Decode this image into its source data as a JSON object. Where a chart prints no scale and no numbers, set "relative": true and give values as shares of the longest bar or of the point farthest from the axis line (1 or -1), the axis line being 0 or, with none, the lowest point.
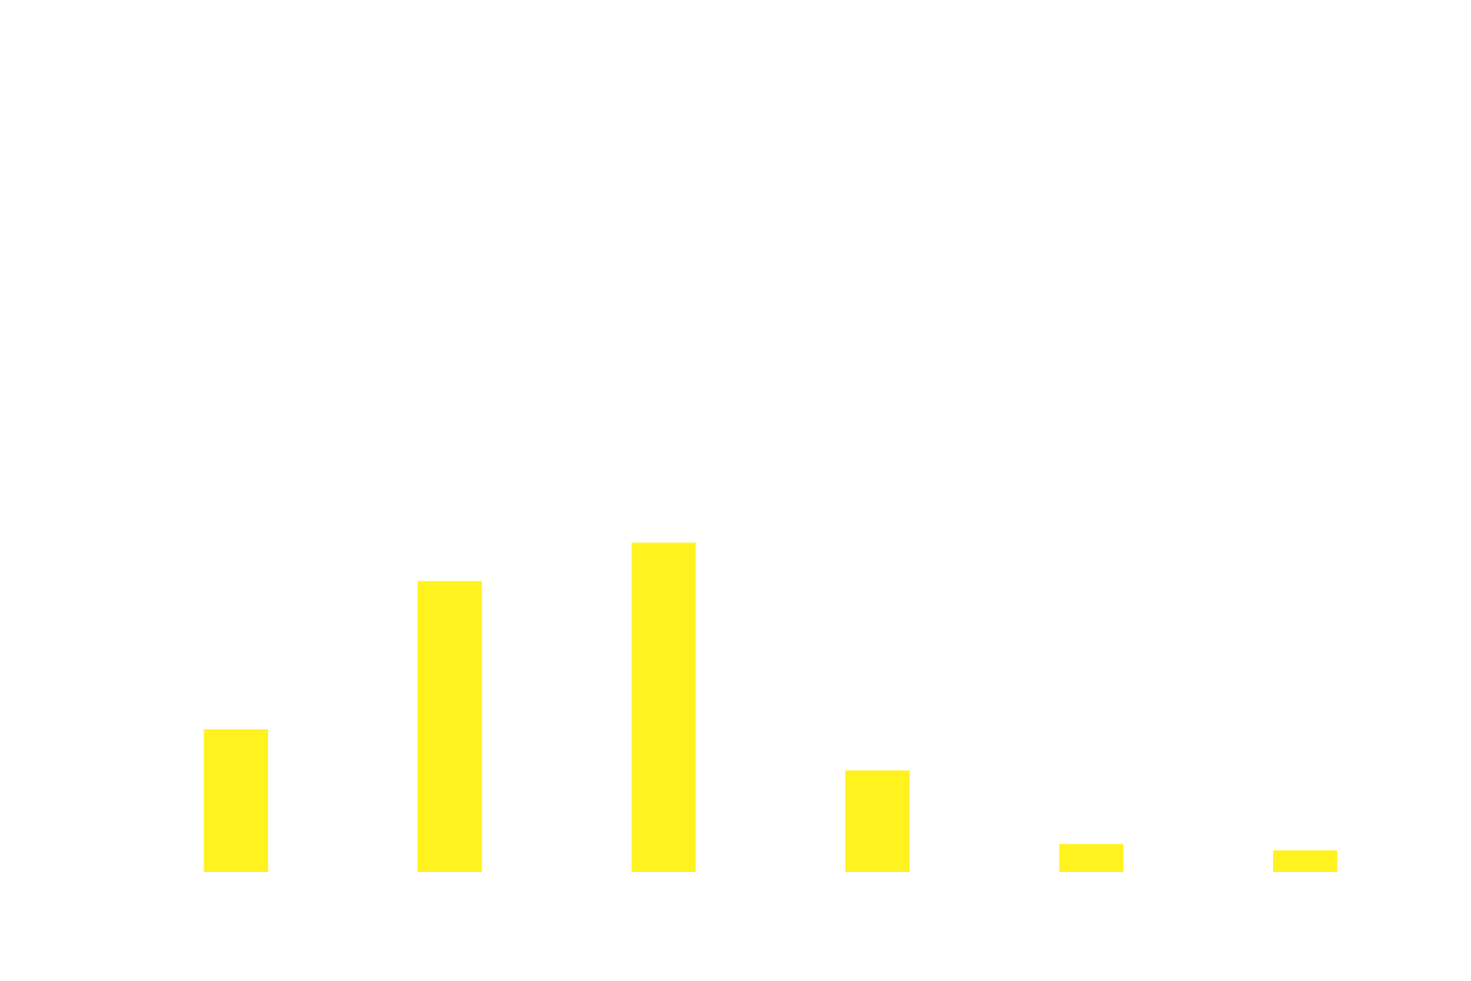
{
  "chart_data": {
    "type": "bar",
    "relative": true,
    "categories": [
      null,
      null,
      null,
      null,
      null,
      null
    ],
    "values": [
      0.433,
      0.883,
      1,
      0.308,
      0.085,
      0.066
    ],
    "color": "#fff21e"
  }
}
